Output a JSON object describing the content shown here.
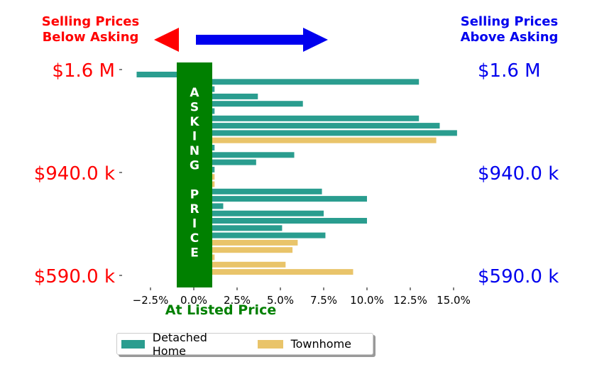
{
  "annotations": {
    "below_asking": [
      "Selling Prices",
      "Below Asking"
    ],
    "above_asking": [
      "Selling Prices",
      "Above Asking"
    ],
    "asking_price_letters": [
      "A",
      "S",
      "K",
      "I",
      "N",
      "G",
      "",
      "P",
      "R",
      "I",
      "C",
      "E"
    ],
    "at_listed_price": "At Listed Price"
  },
  "colors": {
    "detached": "#2a9d8f",
    "townhome": "#e9c46a",
    "asking_band": "#008000",
    "below": "#ff0000",
    "above": "#0000ee"
  },
  "chart_data": {
    "type": "bar",
    "orientation": "horizontal",
    "xlim": [
      -4,
      17
    ],
    "xticks": [
      -2.5,
      0,
      2.5,
      5,
      7.5,
      10,
      12.5,
      15
    ],
    "xtick_labels": [
      "−2.5%",
      "0.0%",
      "2.5%",
      "5.0%",
      "7.5%",
      "10.0%",
      "12.5%",
      "15.0%"
    ],
    "y_tick_labels_left": [
      "$1.6 M",
      "$940.0 k",
      "$590.0 k"
    ],
    "y_tick_labels_right": [
      "$1.6 M",
      "$940.0 k",
      "$590.0 k"
    ],
    "series": [
      {
        "name": "Detached Home",
        "values": [
          -3.3,
          13.0,
          1.2,
          3.7,
          6.3,
          1.2,
          13.0,
          14.2,
          15.2,
          1.2,
          5.8,
          3.6,
          1.2,
          7.4,
          10.0,
          1.7,
          7.5,
          10.0,
          5.1,
          7.6
        ]
      },
      {
        "name": "Townhome",
        "values": [
          14.0,
          1.2,
          1.2,
          6.0,
          5.7,
          1.2,
          5.3,
          9.2
        ]
      }
    ]
  },
  "legend": {
    "items": [
      "Detached Home",
      "Townhome"
    ]
  }
}
